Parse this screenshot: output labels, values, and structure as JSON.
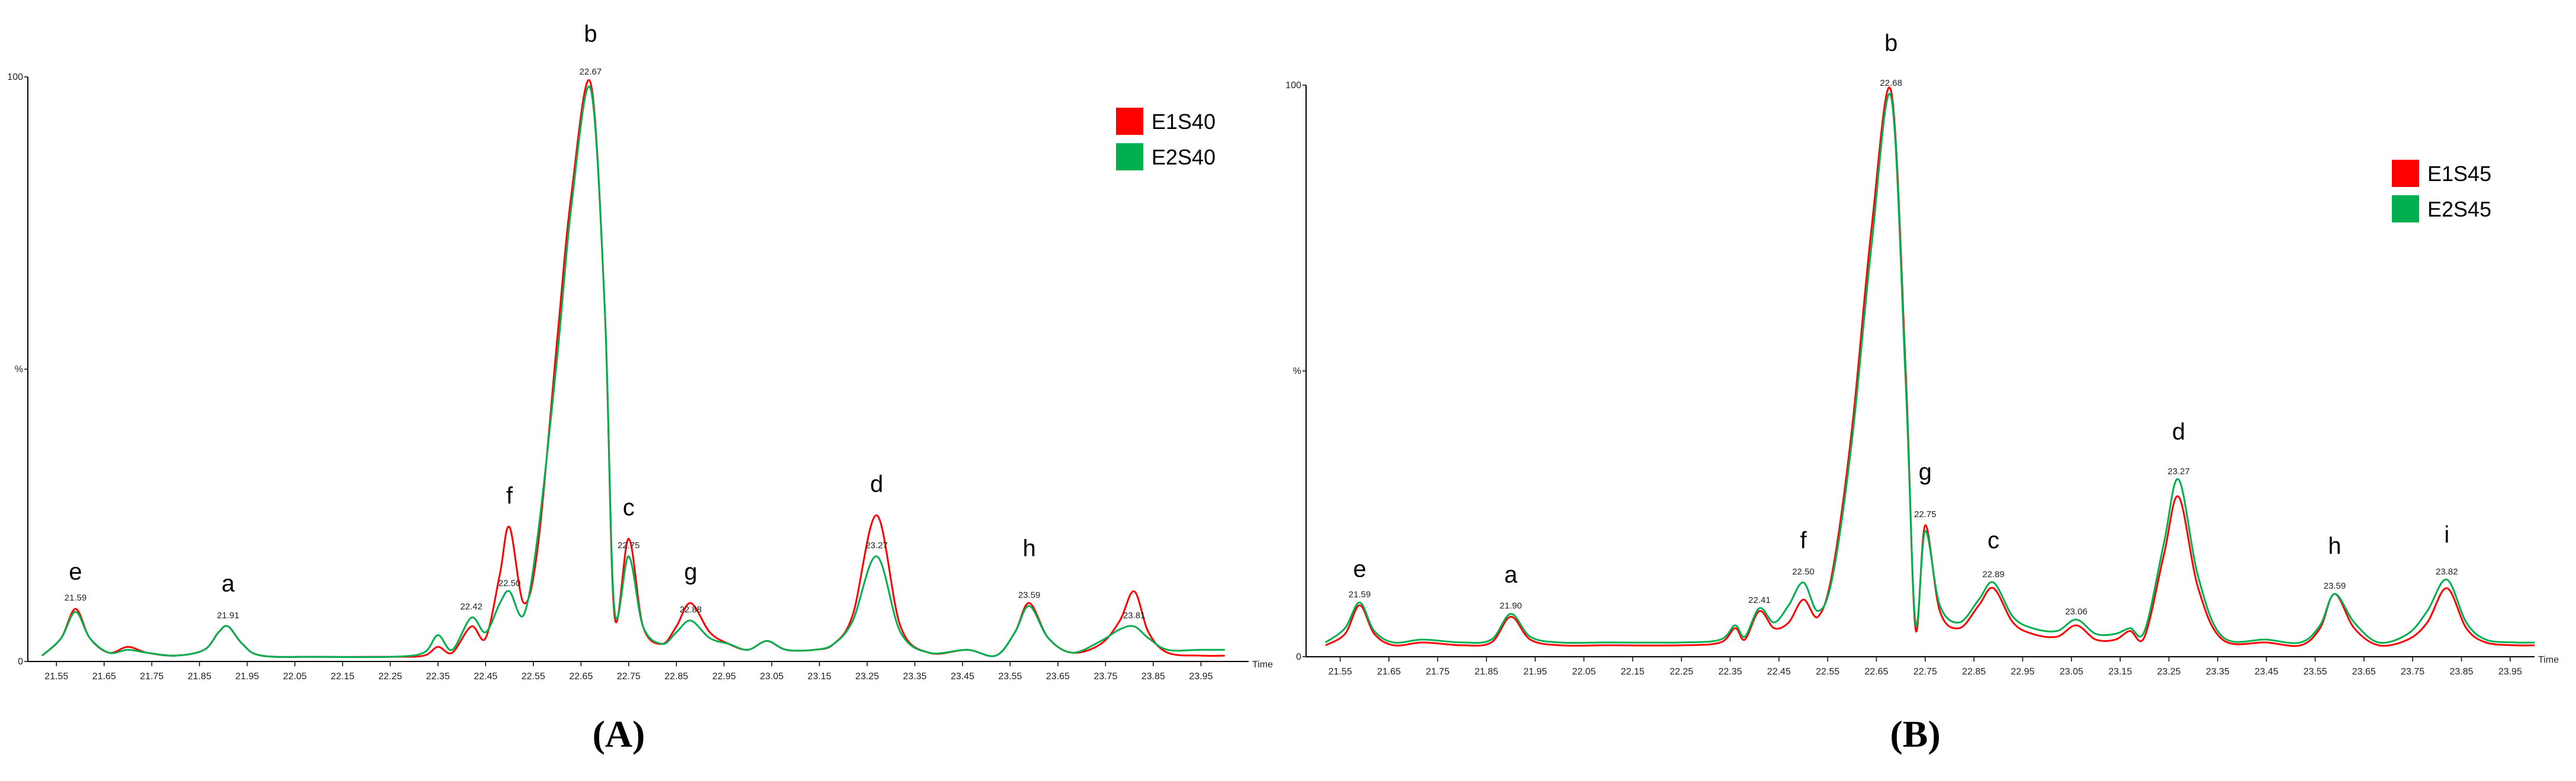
{
  "chart_data": [
    {
      "type": "line",
      "title": "(A)",
      "xlabel": "Time",
      "legend": "upper right",
      "xlim": [
        21.49,
        24.05
      ],
      "ylim": [
        0,
        100
      ],
      "xticks": [
        21.55,
        21.65,
        21.75,
        21.85,
        21.95,
        22.05,
        22.15,
        22.25,
        22.35,
        22.45,
        22.55,
        22.65,
        22.75,
        22.85,
        22.95,
        23.05,
        23.15,
        23.25,
        23.35,
        23.45,
        23.55,
        23.65,
        23.75,
        23.85,
        23.95
      ],
      "yticks": [
        0,
        {
          "value": 50,
          "label": "%"
        },
        100
      ],
      "x": [
        21.52,
        21.56,
        21.59,
        21.62,
        21.66,
        21.7,
        21.74,
        21.8,
        21.86,
        21.89,
        21.91,
        21.94,
        21.98,
        22.1,
        22.25,
        22.32,
        22.35,
        22.38,
        22.42,
        22.45,
        22.48,
        22.5,
        22.53,
        22.56,
        22.6,
        22.63,
        22.67,
        22.7,
        22.72,
        22.75,
        22.78,
        22.82,
        22.85,
        22.88,
        22.92,
        22.96,
        23.0,
        23.04,
        23.08,
        23.14,
        23.18,
        23.22,
        23.27,
        23.32,
        23.38,
        23.46,
        23.52,
        23.56,
        23.59,
        23.63,
        23.68,
        23.74,
        23.78,
        23.81,
        23.84,
        23.88,
        23.95,
        24.0
      ],
      "series": [
        {
          "name": "E1S40",
          "color": "#ff0000",
          "values": [
            1,
            4,
            9,
            4,
            1.5,
            2.5,
            1.5,
            1,
            2,
            5,
            6,
            3,
            1,
            0.8,
            0.8,
            1,
            2.5,
            1.5,
            6,
            4,
            15,
            23,
            10,
            20,
            55,
            80,
            99,
            60,
            8,
            21,
            6,
            3,
            6,
            10,
            5,
            3,
            2,
            3.5,
            2,
            2,
            3,
            8,
            25,
            6,
            1.5,
            2,
            1,
            5,
            10,
            4,
            1.5,
            3,
            7,
            12,
            5,
            1.5,
            1,
            1
          ]
        },
        {
          "name": "E2S40",
          "color": "#00b050",
          "values": [
            1,
            4,
            8.5,
            4,
            1.5,
            2,
            1.5,
            1,
            2,
            5,
            6,
            3,
            1,
            0.8,
            0.8,
            1.5,
            4.5,
            2,
            7.5,
            5,
            10,
            12,
            8,
            22,
            52,
            78,
            98,
            60,
            9,
            18,
            6,
            3,
            5,
            7,
            4,
            3,
            2,
            3.5,
            2,
            2,
            3,
            7,
            18,
            5,
            1.5,
            2,
            1,
            5,
            9.5,
            4,
            1.5,
            3.5,
            5.5,
            6,
            4,
            2,
            2,
            2
          ]
        }
      ],
      "peak_labels": [
        {
          "text": "e",
          "x": 21.59,
          "y": 14
        },
        {
          "text": "a",
          "x": 21.91,
          "y": 12
        },
        {
          "text": "f",
          "x": 22.5,
          "y": 27
        },
        {
          "text": "b",
          "x": 22.67,
          "y": 106
        },
        {
          "text": "c",
          "x": 22.75,
          "y": 25
        },
        {
          "text": "g",
          "x": 22.88,
          "y": 14
        },
        {
          "text": "d",
          "x": 23.27,
          "y": 29
        },
        {
          "text": "h",
          "x": 23.59,
          "y": 18
        }
      ],
      "time_labels": [
        {
          "text": "21.59",
          "x": 21.59,
          "y": 10
        },
        {
          "text": "21.91",
          "x": 21.91,
          "y": 7
        },
        {
          "text": "22.42",
          "x": 22.42,
          "y": 8.5
        },
        {
          "text": "22.50",
          "x": 22.5,
          "y": 12.5
        },
        {
          "text": "22.67",
          "x": 22.67,
          "y": 100
        },
        {
          "text": "22.75",
          "x": 22.75,
          "y": 19
        },
        {
          "text": "22.88",
          "x": 22.88,
          "y": 8
        },
        {
          "text": "23.27",
          "x": 23.27,
          "y": 19
        },
        {
          "text": "23.59",
          "x": 23.59,
          "y": 10.5
        },
        {
          "text": "23.81",
          "x": 23.81,
          "y": 7
        }
      ]
    },
    {
      "type": "line",
      "title": "(B)",
      "xlabel": "Time",
      "legend": "upper right",
      "xlim": [
        21.48,
        24.0
      ],
      "ylim": [
        0,
        100
      ],
      "xticks": [
        21.55,
        21.65,
        21.75,
        21.85,
        21.95,
        22.05,
        22.15,
        22.25,
        22.35,
        22.45,
        22.55,
        22.65,
        22.75,
        22.85,
        22.95,
        23.05,
        23.15,
        23.25,
        23.35,
        23.45,
        23.55,
        23.65,
        23.75,
        23.85,
        23.95
      ],
      "yticks": [
        0,
        {
          "value": 50,
          "label": "%"
        },
        100
      ],
      "x": [
        21.52,
        21.56,
        21.59,
        21.62,
        21.66,
        21.72,
        21.8,
        21.86,
        21.9,
        21.94,
        22.0,
        22.1,
        22.25,
        22.33,
        22.36,
        22.38,
        22.41,
        22.44,
        22.47,
        22.5,
        22.53,
        22.56,
        22.6,
        22.64,
        22.68,
        22.71,
        22.73,
        22.75,
        22.78,
        22.82,
        22.86,
        22.89,
        22.93,
        22.97,
        23.02,
        23.06,
        23.1,
        23.14,
        23.17,
        23.2,
        23.24,
        23.27,
        23.31,
        23.36,
        23.45,
        23.52,
        23.56,
        23.59,
        23.63,
        23.68,
        23.74,
        23.78,
        23.82,
        23.86,
        23.9,
        23.96,
        24.0
      ],
      "series": [
        {
          "name": "E1S45",
          "color": "#ff0000",
          "values": [
            2,
            4,
            9,
            4,
            2,
            2.5,
            2,
            2.5,
            7,
            3,
            2,
            2,
            2,
            2.5,
            5,
            3,
            8,
            5,
            6,
            10,
            7,
            15,
            40,
            75,
            99,
            50,
            5,
            23,
            8,
            5,
            9,
            12,
            6,
            4,
            3.5,
            5.5,
            3,
            3,
            4.5,
            3.5,
            18,
            28,
            12,
            3,
            2.5,
            2,
            5,
            11,
            5,
            2,
            3,
            6,
            12,
            5,
            2.5,
            2,
            2
          ]
        },
        {
          "name": "E2S45",
          "color": "#00b050",
          "values": [
            2.5,
            5,
            9.5,
            4.5,
            2.5,
            3,
            2.5,
            3,
            7.5,
            3.5,
            2.5,
            2.5,
            2.5,
            3,
            5.5,
            3.5,
            8.5,
            6,
            9,
            13,
            8,
            14,
            38,
            72,
            98,
            48,
            6,
            22,
            9,
            6,
            10,
            13,
            7,
            5,
            4.5,
            6.5,
            4,
            4,
            5,
            4.5,
            20,
            31,
            14,
            3.5,
            3,
            2.5,
            5.5,
            11,
            6,
            2.5,
            4,
            8,
            13.5,
            6,
            3,
            2.5,
            2.5
          ]
        }
      ],
      "peak_labels": [
        {
          "text": "e",
          "x": 21.59,
          "y": 14
        },
        {
          "text": "a",
          "x": 21.9,
          "y": 13
        },
        {
          "text": "f",
          "x": 22.5,
          "y": 19
        },
        {
          "text": "b",
          "x": 22.68,
          "y": 106
        },
        {
          "text": "g",
          "x": 22.75,
          "y": 31
        },
        {
          "text": "c",
          "x": 22.89,
          "y": 19
        },
        {
          "text": "d",
          "x": 23.27,
          "y": 38
        },
        {
          "text": "h",
          "x": 23.59,
          "y": 18
        },
        {
          "text": "i",
          "x": 23.82,
          "y": 20
        }
      ],
      "time_labels": [
        {
          "text": "21.59",
          "x": 21.59,
          "y": 10
        },
        {
          "text": "21.90",
          "x": 21.9,
          "y": 8
        },
        {
          "text": "22.41",
          "x": 22.41,
          "y": 9
        },
        {
          "text": "22.50",
          "x": 22.5,
          "y": 14
        },
        {
          "text": "22.68",
          "x": 22.68,
          "y": 99.5
        },
        {
          "text": "22.75",
          "x": 22.75,
          "y": 24
        },
        {
          "text": "22.89",
          "x": 22.89,
          "y": 13.5
        },
        {
          "text": "23.06",
          "x": 23.06,
          "y": 7
        },
        {
          "text": "23.27",
          "x": 23.27,
          "y": 31.5
        },
        {
          "text": "23.59",
          "x": 23.59,
          "y": 11.5
        },
        {
          "text": "23.82",
          "x": 23.82,
          "y": 14
        }
      ]
    }
  ]
}
